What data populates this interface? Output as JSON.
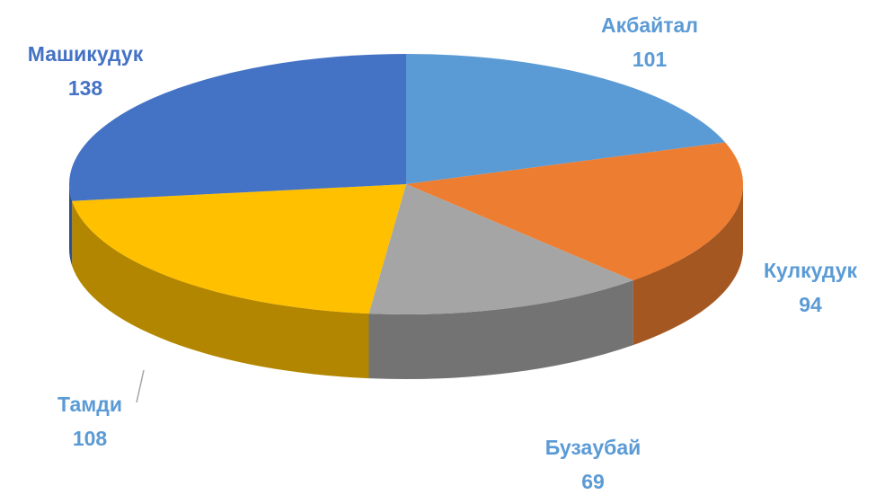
{
  "chart_data": {
    "type": "pie",
    "categories": [
      "Акбайтал",
      "Кулкудук",
      "Бузаубай",
      "Тамди",
      "Машикудук"
    ],
    "values": [
      101,
      94,
      69,
      108,
      138
    ],
    "colors": [
      "#5b9bd5",
      "#ed7d31",
      "#a5a5a5",
      "#ffc000",
      "#4472c4"
    ]
  }
}
